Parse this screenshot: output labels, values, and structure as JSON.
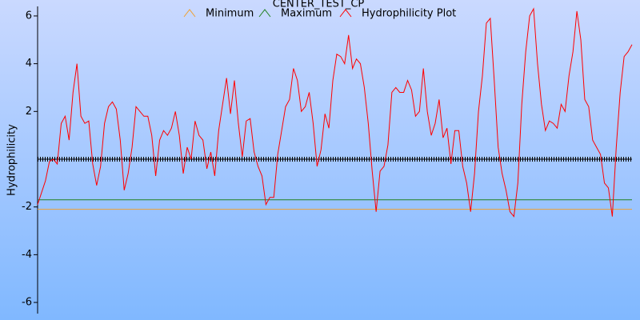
{
  "chart_data": {
    "type": "line",
    "title": "CENTER_TEST_CP",
    "ylabel": "Hydrophilicity",
    "ylim": [
      -6.4,
      6.4
    ],
    "yticks": [
      -6,
      -4,
      -2,
      2,
      4,
      6
    ],
    "series": [
      {
        "name": "Minimum",
        "color": "#f0a030",
        "value": -2.1
      },
      {
        "name": "Maximum",
        "color": "#208020",
        "value": -1.7
      },
      {
        "name": "Hydrophilicity Plot",
        "color": "#ff0000",
        "values": [
          -1.9,
          -1.4,
          -0.9,
          -0.1,
          0.0,
          -0.2,
          1.5,
          1.8,
          0.8,
          2.8,
          4.0,
          1.8,
          1.5,
          1.6,
          -0.2,
          -1.1,
          -0.3,
          1.5,
          2.2,
          2.4,
          2.1,
          0.8,
          -1.3,
          -0.6,
          0.5,
          2.2,
          2.0,
          1.8,
          1.8,
          1.0,
          -0.7,
          0.8,
          1.2,
          1.0,
          1.3,
          2.0,
          1.0,
          -0.6,
          0.5,
          0.0,
          1.6,
          1.0,
          0.8,
          -0.4,
          0.3,
          -0.7,
          1.2,
          2.3,
          3.4,
          1.9,
          3.3,
          1.5,
          0.1,
          1.6,
          1.7,
          0.3,
          -0.3,
          -0.7,
          -1.9,
          -1.6,
          -1.6,
          0.2,
          1.2,
          2.2,
          2.5,
          3.8,
          3.3,
          2.0,
          2.2,
          2.8,
          1.5,
          -0.3,
          0.4,
          1.9,
          1.3,
          3.3,
          4.4,
          4.3,
          4.0,
          5.2,
          3.8,
          4.2,
          4.0,
          3.0,
          1.5,
          -0.5,
          -2.2,
          -0.5,
          -0.3,
          0.6,
          2.8,
          3.0,
          2.8,
          2.8,
          3.3,
          2.9,
          1.8,
          2.0,
          3.8,
          2.0,
          1.0,
          1.5,
          2.5,
          0.9,
          1.3,
          -0.2,
          1.2,
          1.2,
          -0.3,
          -1.0,
          -2.2,
          -0.6,
          2.0,
          3.5,
          5.7,
          5.9,
          3.3,
          0.5,
          -0.6,
          -1.3,
          -2.2,
          -2.4,
          -1.0,
          2.3,
          4.5,
          6.0,
          6.3,
          4.0,
          2.3,
          1.2,
          1.6,
          1.5,
          1.3,
          2.3,
          2.0,
          3.5,
          4.5,
          6.2,
          5.0,
          2.5,
          2.2,
          0.8,
          0.5,
          0.2,
          -1.0,
          -1.2,
          -2.4,
          0.5,
          2.8,
          4.3,
          4.5,
          4.8
        ]
      }
    ]
  }
}
